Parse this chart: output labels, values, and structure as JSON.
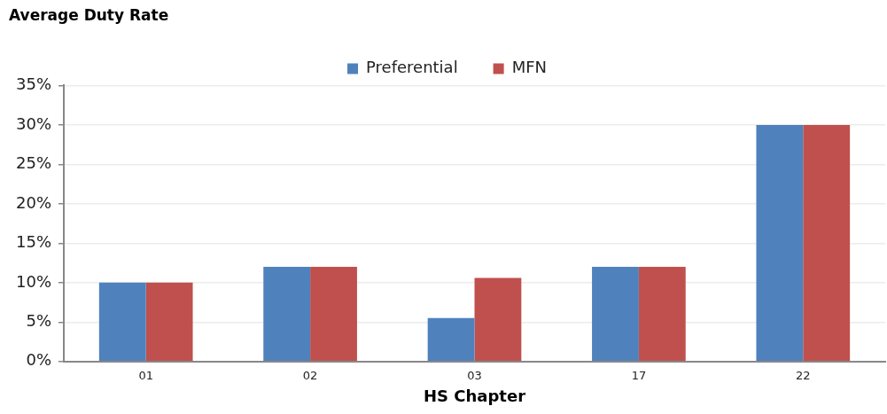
{
  "chart_data": {
    "type": "bar",
    "title": "Average Duty Rate",
    "xlabel": "HS Chapter",
    "categories": [
      "01",
      "02",
      "03",
      "17",
      "22"
    ],
    "series": [
      {
        "name": "Preferential",
        "color": "#4f81bd",
        "values": [
          10,
          12,
          5.5,
          12,
          30
        ]
      },
      {
        "name": "MFN",
        "color": "#c0504d",
        "values": [
          10,
          12,
          10.6,
          12,
          30
        ]
      }
    ],
    "ylim": [
      0,
      35
    ],
    "yticks": [
      {
        "value": 0,
        "label": "0%"
      },
      {
        "value": 5,
        "label": "5%"
      },
      {
        "value": 10,
        "label": "10%"
      },
      {
        "value": 15,
        "label": "15%"
      },
      {
        "value": 20,
        "label": "20%"
      },
      {
        "value": 25,
        "label": "25%"
      },
      {
        "value": 30,
        "label": "30%"
      },
      {
        "value": 35,
        "label": "35%"
      }
    ],
    "grid": "y",
    "legend": "top"
  }
}
